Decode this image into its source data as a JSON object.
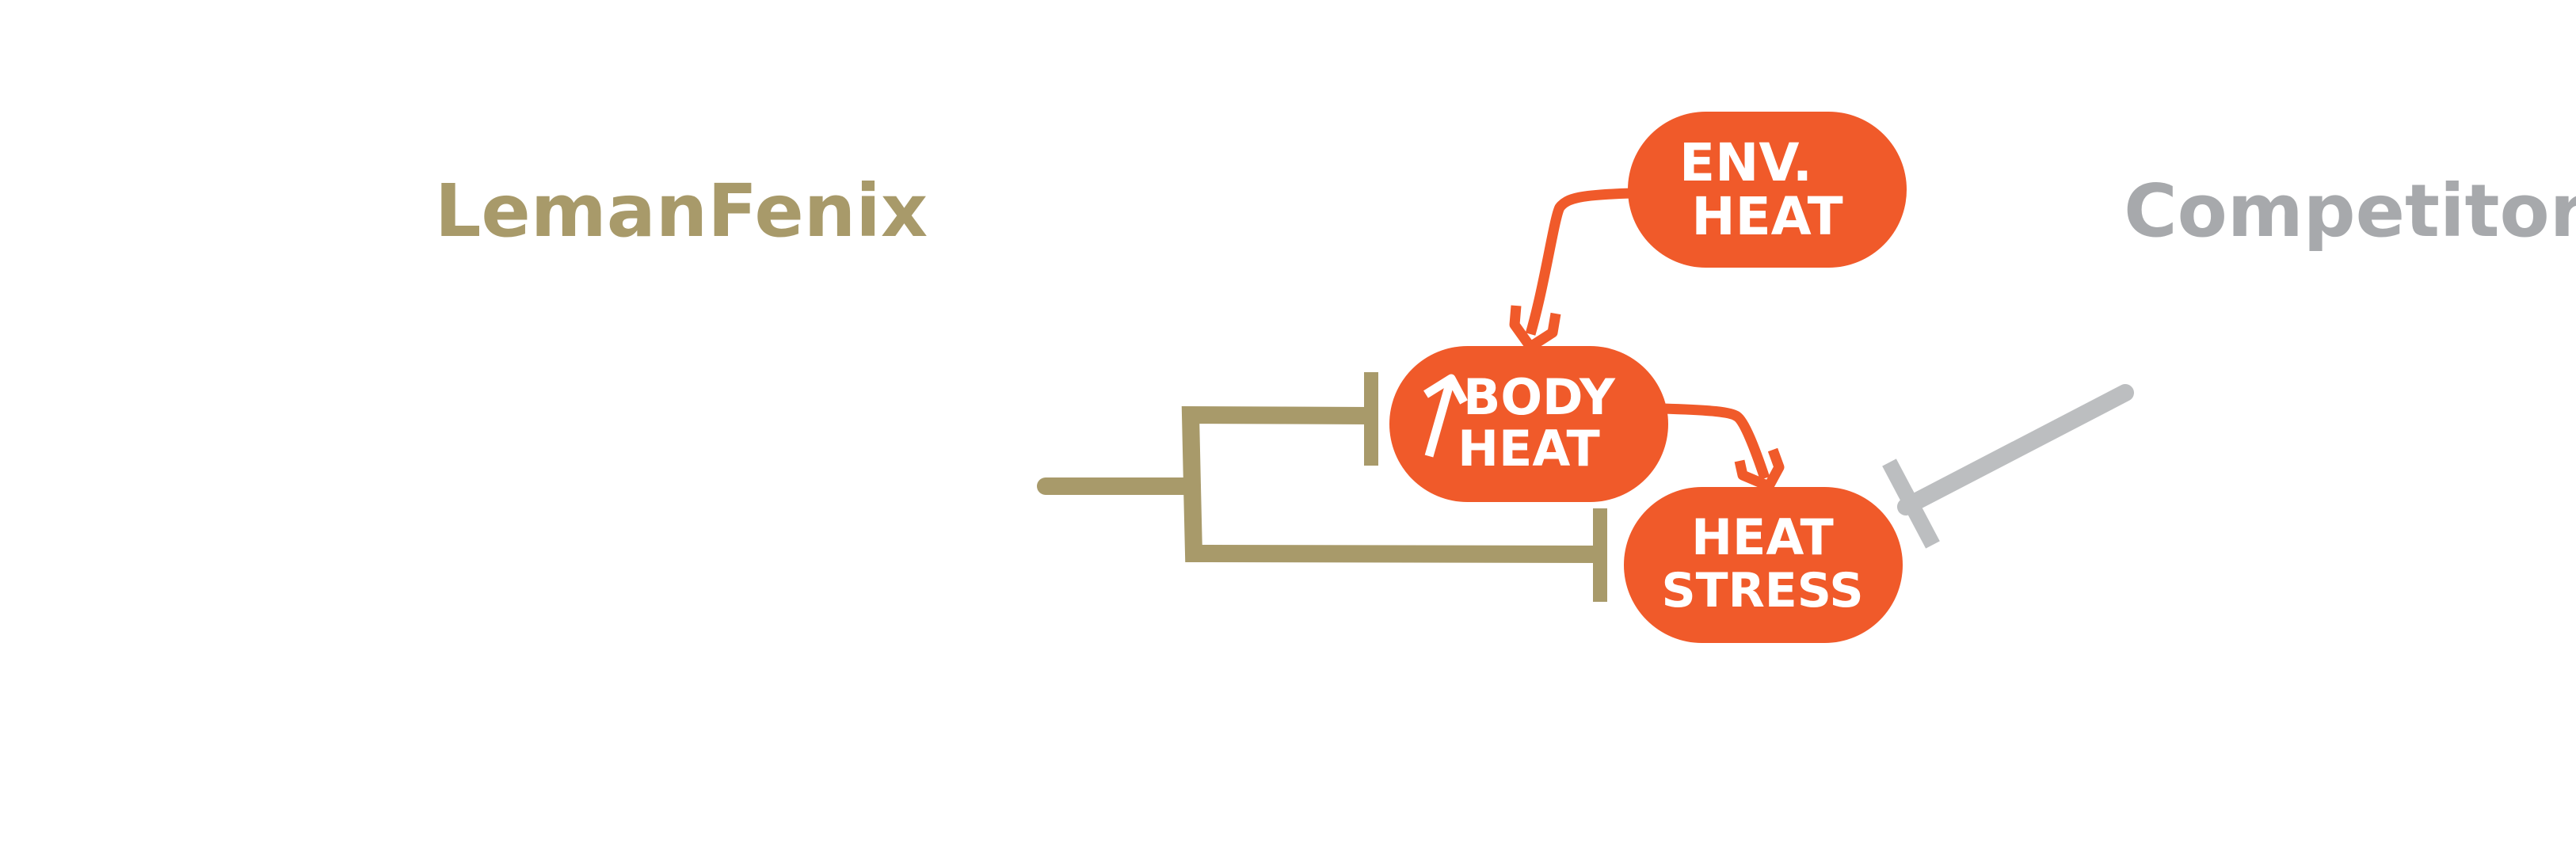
{
  "labels": {
    "left_brand": "LemanFenix",
    "right_brand": "Competitors"
  },
  "nodes": {
    "env_heat": {
      "line1": "ENV.",
      "line2": "HEAT"
    },
    "body_heat": {
      "line1": "BODY",
      "line2": "HEAT",
      "icon": "up-arrow-icon"
    },
    "heat_stress": {
      "line1": "HEAT",
      "line2": "STRESS"
    }
  },
  "colors": {
    "node_fill": "#F05A2A",
    "node_text": "#FFFFFF",
    "leman": "#A89A6A",
    "competitor": "#A7A9AC",
    "arrow": "#F05A2A"
  }
}
